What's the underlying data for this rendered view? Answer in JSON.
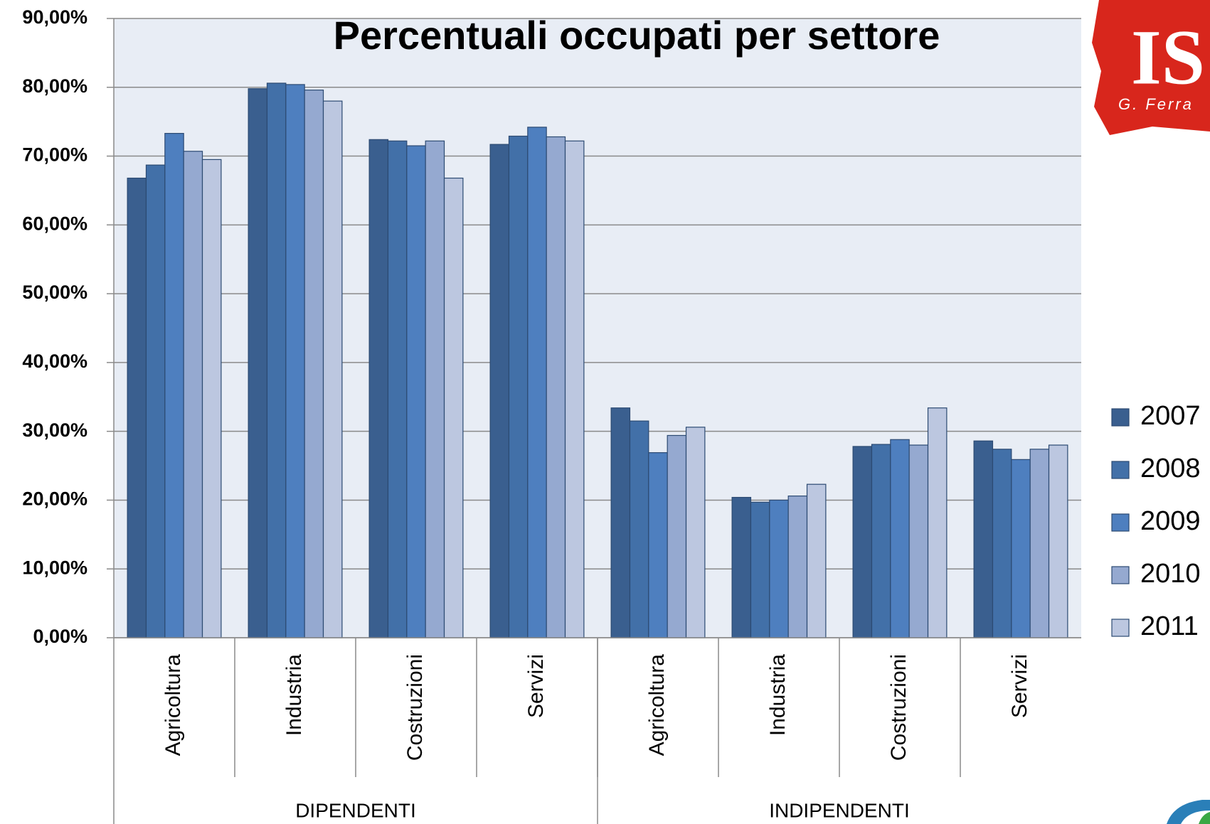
{
  "chart_data": {
    "type": "bar",
    "title": "Percentuali  occupati per settore",
    "categories": [
      "Agricoltura",
      "Industria",
      "Costruzioni",
      "Servizi",
      "Agricoltura",
      "Industria",
      "Costruzioni",
      "Servizi"
    ],
    "groups": [
      {
        "name": "DIPENDENTI",
        "categories": [
          0,
          1,
          2,
          3
        ]
      },
      {
        "name": "INDIPENDENTI",
        "categories": [
          4,
          5,
          6,
          7
        ]
      }
    ],
    "series": [
      {
        "name": "2007",
        "color": "#3a5f8f",
        "values": [
          66.8,
          79.8,
          72.4,
          71.7,
          33.4,
          20.4,
          27.8,
          28.6
        ]
      },
      {
        "name": "2008",
        "color": "#4270a8",
        "values": [
          68.7,
          80.6,
          72.2,
          72.9,
          31.5,
          19.7,
          28.1,
          27.4
        ]
      },
      {
        "name": "2009",
        "color": "#4e7fbf",
        "values": [
          73.3,
          80.4,
          71.5,
          74.2,
          26.9,
          20.0,
          28.8,
          25.9
        ]
      },
      {
        "name": "2010",
        "color": "#95a9d0",
        "values": [
          70.7,
          79.6,
          72.2,
          72.8,
          29.4,
          20.6,
          28.0,
          27.4
        ]
      },
      {
        "name": "2011",
        "color": "#bcc7e0",
        "values": [
          69.5,
          78.0,
          66.8,
          72.2,
          30.6,
          22.3,
          33.4,
          28.0
        ]
      }
    ],
    "ylim": [
      0,
      90
    ],
    "yticks": [
      {
        "value": 0,
        "label": "0,00%"
      },
      {
        "value": 10,
        "label": "10,00%"
      },
      {
        "value": 20,
        "label": "20,00%"
      },
      {
        "value": 30,
        "label": "30,00%"
      },
      {
        "value": 40,
        "label": "40,00%"
      },
      {
        "value": 50,
        "label": "50,00%"
      },
      {
        "value": 60,
        "label": "60,00%"
      },
      {
        "value": 70,
        "label": "70,00%"
      },
      {
        "value": 80,
        "label": "80,00%"
      },
      {
        "value": 90,
        "label": "90,00%"
      }
    ],
    "grid": true,
    "legend": "right"
  },
  "logo": {
    "text": "IS",
    "subtext": "G. Ferra"
  }
}
